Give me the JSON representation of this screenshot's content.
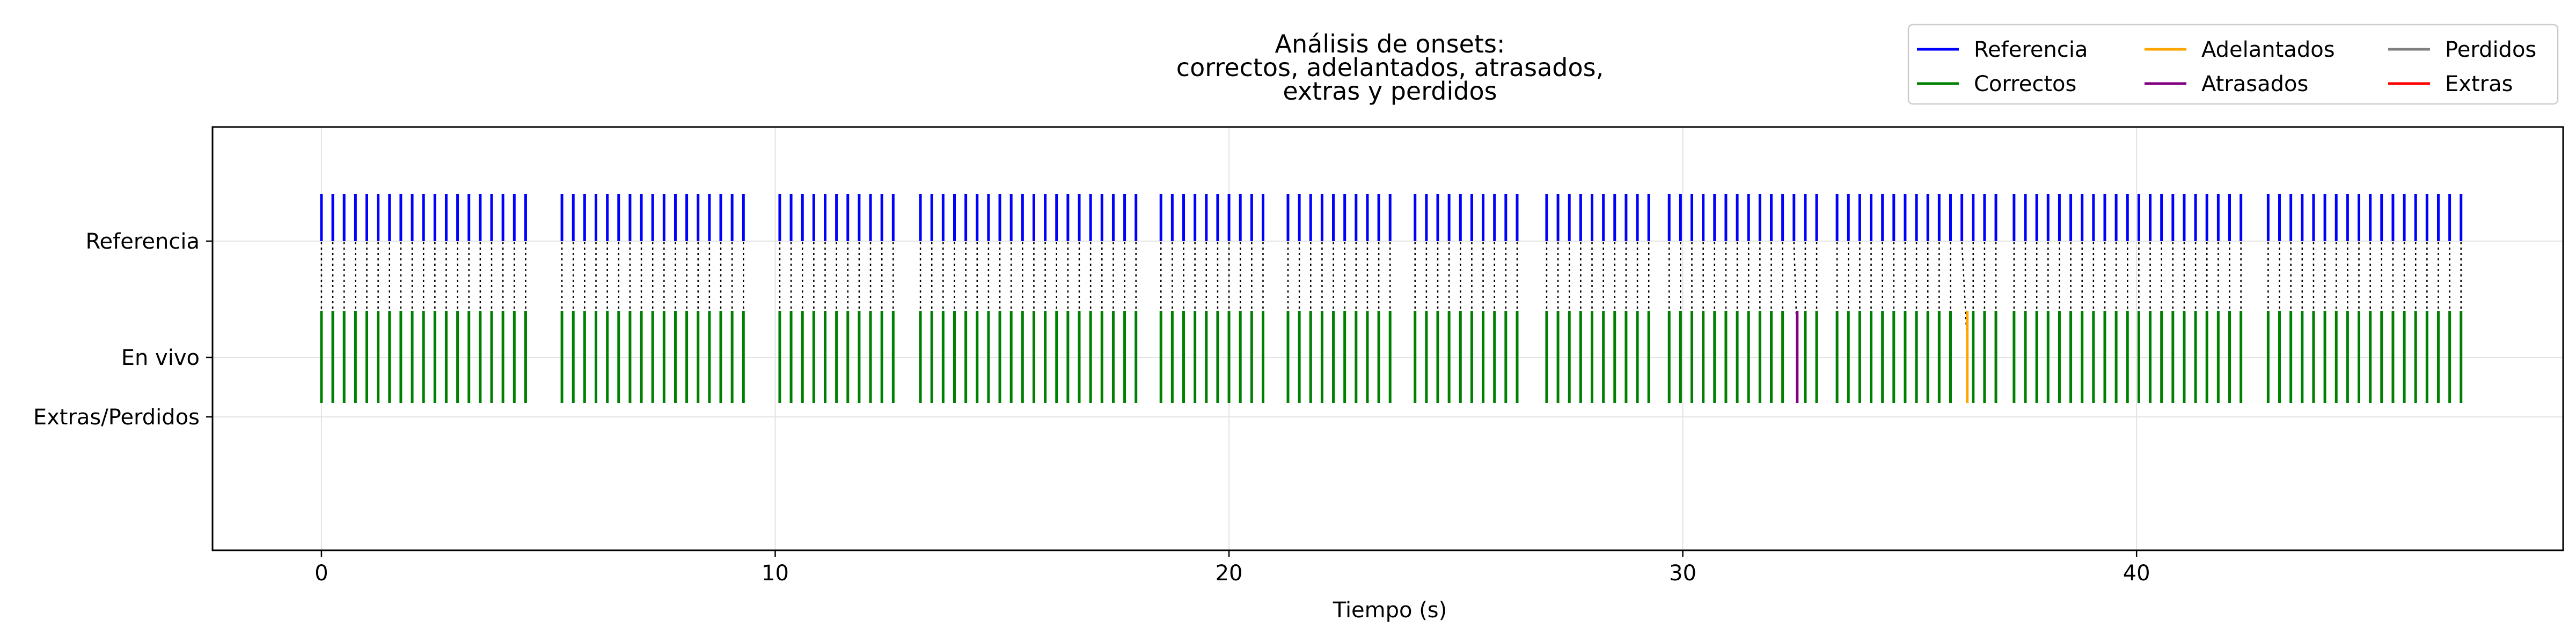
{
  "chart_data": {
    "type": "event-raster",
    "title": "Análisis de onsets:\ncorrectos, adelantados, atrasados,\nextras y perdidos",
    "xlabel": "Tiempo (s)",
    "ylabel": "",
    "xlim": [
      -2.4,
      49.4
    ],
    "xticks": [
      0,
      10,
      20,
      30,
      40
    ],
    "rows": [
      "Referencia",
      "En vivo",
      "Extras/Perdidos"
    ],
    "grid": true,
    "legend": {
      "position": "top-right",
      "columns": 3,
      "entries": [
        {
          "label": "Referencia",
          "color": "#0000ff"
        },
        {
          "label": "Correctos",
          "color": "#008000"
        },
        {
          "label": "Adelantados",
          "color": "#ffa500"
        },
        {
          "label": "Atrasados",
          "color": "#800080"
        },
        {
          "label": "Perdidos",
          "color": "#808080"
        },
        {
          "label": "Extras",
          "color": "#ff0000"
        }
      ]
    },
    "groups": [
      {
        "start": 0.0,
        "end": 4.6
      },
      {
        "start": 5.3,
        "end": 9.4
      },
      {
        "start": 10.1,
        "end": 12.6
      },
      {
        "start": 13.2,
        "end": 18.0
      },
      {
        "start": 18.5,
        "end": 20.8
      },
      {
        "start": 21.3,
        "end": 23.6
      },
      {
        "start": 24.1,
        "end": 26.5
      },
      {
        "start": 27.0,
        "end": 29.3
      },
      {
        "start": 29.7,
        "end": 33.0
      },
      {
        "start": 33.4,
        "end": 36.9
      },
      {
        "start": 37.3,
        "end": 42.3
      },
      {
        "start": 42.9,
        "end": 47.2
      }
    ],
    "interval": 0.25,
    "adelantados": [
      33.1,
      36.1
    ],
    "atrasados": [
      32.4
    ],
    "perdidos": [],
    "extras": []
  }
}
